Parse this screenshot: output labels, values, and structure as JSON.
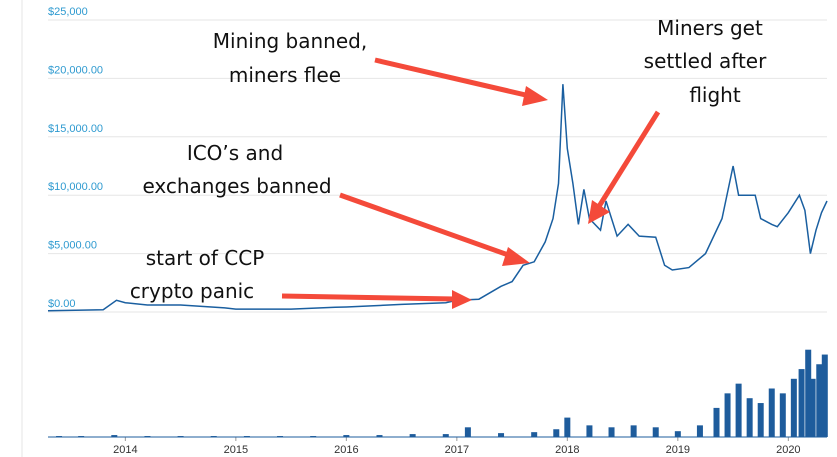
{
  "chart_data": [
    {
      "type": "line",
      "color": "#1a5fa0",
      "x": [
        2013.3,
        2013.8,
        2013.92,
        2014.0,
        2014.2,
        2014.5,
        2014.9,
        2015.0,
        2015.5,
        2015.9,
        2016.0,
        2016.5,
        2016.9,
        2017.0,
        2017.2,
        2017.4,
        2017.5,
        2017.6,
        2017.7,
        2017.8,
        2017.87,
        2017.92,
        2017.96,
        2018.0,
        2018.05,
        2018.1,
        2018.15,
        2018.2,
        2018.3,
        2018.35,
        2018.45,
        2018.55,
        2018.65,
        2018.8,
        2018.88,
        2018.95,
        2019.1,
        2019.25,
        2019.4,
        2019.5,
        2019.55,
        2019.7,
        2019.75,
        2019.85,
        2019.9,
        2020.0,
        2020.1,
        2020.15,
        2020.2,
        2020.25,
        2020.3,
        2020.35
      ],
      "values": [
        100,
        200,
        1000,
        800,
        600,
        600,
        350,
        250,
        250,
        400,
        430,
        650,
        800,
        1000,
        1100,
        2200,
        2600,
        4000,
        4300,
        6000,
        8000,
        11000,
        19500,
        14000,
        11000,
        7500,
        10500,
        8000,
        7000,
        9500,
        6500,
        7500,
        6500,
        6400,
        4000,
        3600,
        3800,
        5000,
        8000,
        12500,
        10000,
        10000,
        8000,
        7500,
        7300,
        8500,
        10000,
        8700,
        5000,
        7000,
        8500,
        9500
      ],
      "xlim": [
        2013.3,
        2020.35
      ],
      "xticks": [
        2014,
        2015,
        2016,
        2017,
        2018,
        2019,
        2020
      ],
      "ylim": [
        0,
        25000
      ],
      "yticks": [
        {
          "value": 0,
          "label": "$0.00"
        },
        {
          "value": 5000,
          "label": "$5,000.00"
        },
        {
          "value": 10000,
          "label": "$10,000.00"
        },
        {
          "value": 15000,
          "label": "$15,000.00"
        },
        {
          "value": 20000,
          "label": "$20,000.00"
        },
        {
          "value": 25000,
          "label": "$25,000"
        }
      ],
      "grid": true,
      "annotations": [
        [
          "Mining banned,",
          "miners flee"
        ],
        [
          "Miners get",
          "settled after",
          "flight"
        ],
        [
          "ICO’s  and",
          "exchanges banned"
        ],
        [
          "start of CCP",
          "crypto panic"
        ]
      ]
    },
    {
      "type": "bar",
      "color": "#1e5c9c",
      "x": [
        2013.4,
        2013.6,
        2013.9,
        2014.2,
        2014.5,
        2014.8,
        2015.1,
        2015.4,
        2015.7,
        2016.0,
        2016.3,
        2016.6,
        2016.9,
        2017.1,
        2017.4,
        2017.7,
        2017.9,
        2018.0,
        2018.2,
        2018.4,
        2018.6,
        2018.8,
        2019.0,
        2019.2,
        2019.35,
        2019.45,
        2019.55,
        2019.65,
        2019.75,
        2019.85,
        2019.95,
        2020.05,
        2020.12,
        2020.18,
        2020.22,
        2020.28,
        2020.33
      ],
      "values": [
        1,
        1,
        2,
        1,
        1,
        1,
        1,
        1,
        1,
        2,
        2,
        3,
        3,
        10,
        4,
        5,
        8,
        20,
        12,
        10,
        12,
        10,
        6,
        12,
        30,
        45,
        55,
        40,
        35,
        50,
        45,
        60,
        70,
        90,
        60,
        75,
        85
      ],
      "ylim": [
        0,
        100
      ]
    }
  ]
}
